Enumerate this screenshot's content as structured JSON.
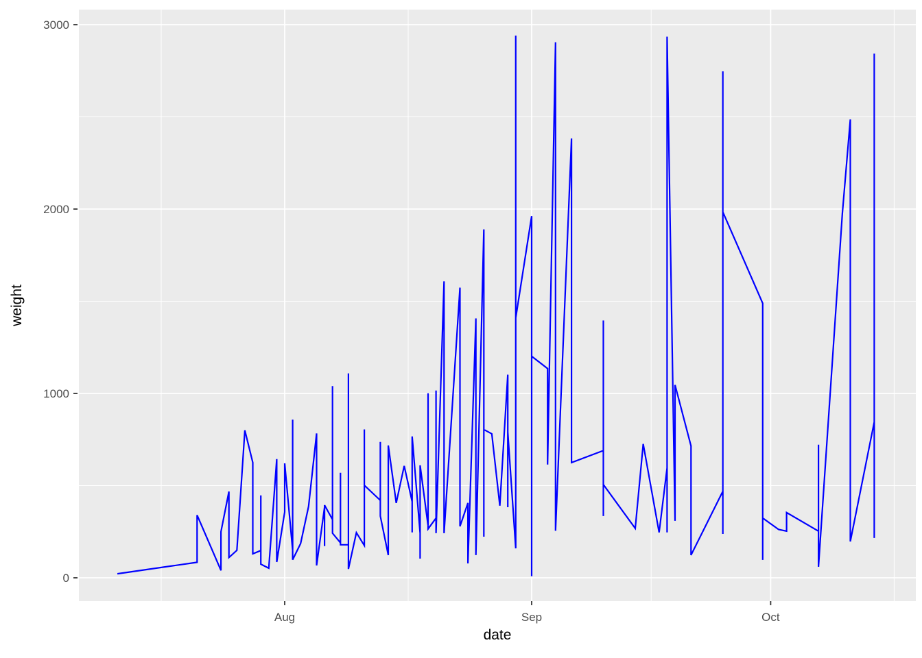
{
  "chart_data": {
    "type": "line",
    "title": "",
    "xlabel": "date",
    "ylabel": "weight",
    "x_tick_labels": [
      "Aug",
      "Sep",
      "Oct"
    ],
    "x_major_dates": [
      "Aug 1",
      "Sep 1",
      "Oct 1"
    ],
    "x_range": [
      "Jul 6",
      "Oct 19"
    ],
    "y_tick_labels": [
      "0",
      "1000",
      "2000",
      "3000"
    ],
    "y_major_values": [
      0,
      1000,
      2000,
      3000
    ],
    "y_minor_values": [
      500,
      1500,
      2500
    ],
    "ylim": [
      0,
      3000
    ],
    "grid": "on",
    "legend": "none",
    "series": [
      {
        "name": "weight",
        "color": "#0000FF",
        "points": [
          [
            "Jul 11",
            22
          ],
          [
            "Jul 21",
            84
          ],
          [
            "Jul 21",
            340
          ],
          [
            "Jul 24",
            40
          ],
          [
            "Jul 24",
            250
          ],
          [
            "Jul 25",
            468
          ],
          [
            "Jul 25",
            110
          ],
          [
            "Jul 26",
            149
          ],
          [
            "Jul 27",
            800
          ],
          [
            "Jul 28",
            625
          ],
          [
            "Jul 28",
            130
          ],
          [
            "Jul 29",
            148
          ],
          [
            "Jul 29",
            447
          ],
          [
            "Jul 29",
            74
          ],
          [
            "Jul 30",
            52
          ],
          [
            "Jul 31",
            644
          ],
          [
            "Jul 31",
            86
          ],
          [
            "Aug 1",
            357
          ],
          [
            "Aug 1",
            621
          ],
          [
            "Aug 2",
            150
          ],
          [
            "Aug 2",
            858
          ],
          [
            "Aug 2",
            98
          ],
          [
            "Aug 3",
            186
          ],
          [
            "Aug 4",
            387
          ],
          [
            "Aug 5",
            783
          ],
          [
            "Aug 5",
            67
          ],
          [
            "Aug 6",
            383
          ],
          [
            "Aug 6",
            172
          ],
          [
            "Aug 6",
            394
          ],
          [
            "Aug 7",
            316
          ],
          [
            "Aug 7",
            1040
          ],
          [
            "Aug 7",
            242
          ],
          [
            "Aug 8",
            190
          ],
          [
            "Aug 8",
            570
          ],
          [
            "Aug 8",
            179
          ],
          [
            "Aug 9",
            179
          ],
          [
            "Aug 9",
            1109
          ],
          [
            "Aug 9",
            48
          ],
          [
            "Aug 10",
            245
          ],
          [
            "Aug 11",
            175
          ],
          [
            "Aug 11",
            805
          ],
          [
            "Aug 11",
            502
          ],
          [
            "Aug 13",
            420
          ],
          [
            "Aug 13",
            737
          ],
          [
            "Aug 13",
            335
          ],
          [
            "Aug 14",
            123
          ],
          [
            "Aug 14",
            718
          ],
          [
            "Aug 15",
            406
          ],
          [
            "Aug 16",
            607
          ],
          [
            "Aug 17",
            413
          ],
          [
            "Aug 17",
            246
          ],
          [
            "Aug 17",
            767
          ],
          [
            "Aug 18",
            242
          ],
          [
            "Aug 18",
            104
          ],
          [
            "Aug 18",
            610
          ],
          [
            "Aug 19",
            283
          ],
          [
            "Aug 19",
            1001
          ],
          [
            "Aug 19",
            265
          ],
          [
            "Aug 20",
            324
          ],
          [
            "Aug 20",
            1016
          ],
          [
            "Aug 20",
            242
          ],
          [
            "Aug 21",
            1608
          ],
          [
            "Aug 21",
            242
          ],
          [
            "Aug 23",
            1574
          ],
          [
            "Aug 23",
            279
          ],
          [
            "Aug 24",
            406
          ],
          [
            "Aug 24",
            112
          ],
          [
            "Aug 24",
            78
          ],
          [
            "Aug 25",
            1407
          ],
          [
            "Aug 25",
            123
          ],
          [
            "Aug 26",
            1890
          ],
          [
            "Aug 26",
            223
          ],
          [
            "Aug 26",
            804
          ],
          [
            "Aug 27",
            781
          ],
          [
            "Aug 28",
            391
          ],
          [
            "Aug 29",
            1102
          ],
          [
            "Aug 29",
            383
          ],
          [
            "Aug 29",
            791
          ],
          [
            "Aug 30",
            160
          ],
          [
            "Aug 30",
            2941
          ],
          [
            "Aug 30",
            1410
          ],
          [
            "Sep 1",
            1962
          ],
          [
            "Sep 1",
            190
          ],
          [
            "Sep 1",
            8
          ],
          [
            "Sep 1",
            1202
          ],
          [
            "Sep 3",
            1135
          ],
          [
            "Sep 3",
            614
          ],
          [
            "Sep 4",
            2905
          ],
          [
            "Sep 4",
            255
          ],
          [
            "Sep 6",
            2383
          ],
          [
            "Sep 6",
            625
          ],
          [
            "Sep 10",
            690
          ],
          [
            "Sep 10",
            1396
          ],
          [
            "Sep 10",
            335
          ],
          [
            "Sep 10",
            506
          ],
          [
            "Sep 14",
            268
          ],
          [
            "Sep 15",
            726
          ],
          [
            "Sep 17",
            246
          ],
          [
            "Sep 18",
            596
          ],
          [
            "Sep 18",
            246
          ],
          [
            "Sep 18",
            2935
          ],
          [
            "Sep 19",
            309
          ],
          [
            "Sep 19",
            1046
          ],
          [
            "Sep 21",
            715
          ],
          [
            "Sep 21",
            123
          ],
          [
            "Sep 25",
            469
          ],
          [
            "Sep 25",
            2747
          ],
          [
            "Sep 25",
            238
          ],
          [
            "Sep 25",
            1984
          ],
          [
            "Sep 30",
            1489
          ],
          [
            "Sep 30",
            97
          ],
          [
            "Sep 30",
            324
          ],
          [
            "Oct 2",
            262
          ],
          [
            "Oct 3",
            253
          ],
          [
            "Oct 3",
            354
          ],
          [
            "Oct 7",
            253
          ],
          [
            "Oct 7",
            722
          ],
          [
            "Oct 7",
            60
          ],
          [
            "Oct 10",
            1976
          ],
          [
            "Oct 11",
            2486
          ],
          [
            "Oct 11",
            197
          ],
          [
            "Oct 14",
            845
          ],
          [
            "Oct 14",
            2843
          ],
          [
            "Oct 14",
            216
          ]
        ]
      }
    ]
  },
  "style": {
    "figure_background": "#FFFFFF",
    "panel_background": "#EBEBEB",
    "gridline_color": "#FFFFFF",
    "tick_label_color": "#4D4D4D",
    "tick_mark_color": "#333333",
    "axis_title_color": "#000000",
    "line_color": "#0000FF"
  }
}
